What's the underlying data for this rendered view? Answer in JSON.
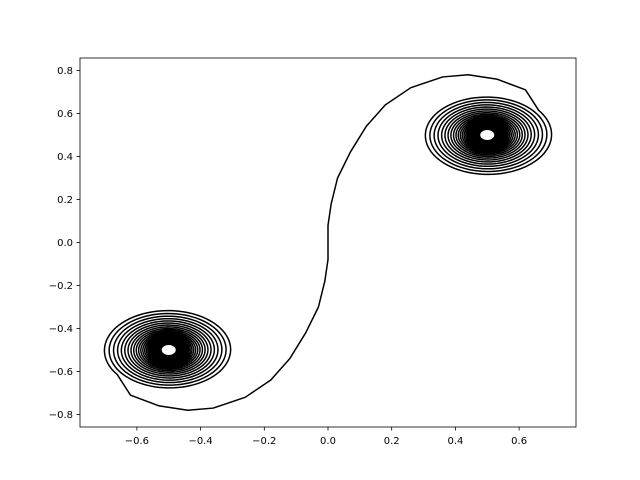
{
  "chart_data": {
    "type": "line",
    "title": "",
    "xlabel": "",
    "ylabel": "",
    "xlim": [
      -0.7786,
      0.7786
    ],
    "ylim": [
      -0.8581,
      0.8581
    ],
    "grid": false,
    "legend": "none",
    "line_color": "#000000",
    "x_ticks": [
      {
        "value": -0.6,
        "label": "−0.6"
      },
      {
        "value": -0.4,
        "label": "−0.4"
      },
      {
        "value": -0.2,
        "label": "−0.2"
      },
      {
        "value": 0.0,
        "label": "0.0"
      },
      {
        "value": 0.2,
        "label": "0.2"
      },
      {
        "value": 0.4,
        "label": "0.4"
      },
      {
        "value": 0.6,
        "label": "0.6"
      }
    ],
    "y_ticks": [
      {
        "value": -0.8,
        "label": "−0.8"
      },
      {
        "value": -0.6,
        "label": "−0.6"
      },
      {
        "value": -0.4,
        "label": "−0.4"
      },
      {
        "value": -0.2,
        "label": "−0.2"
      },
      {
        "value": 0.0,
        "label": "0.0"
      },
      {
        "value": 0.2,
        "label": "0.2"
      },
      {
        "value": 0.4,
        "label": "0.4"
      },
      {
        "value": 0.6,
        "label": "0.6"
      },
      {
        "value": 0.8,
        "label": "0.8"
      }
    ],
    "series": [
      {
        "curve": "double-spiral",
        "centers": [
          [
            -0.5,
            -0.5
          ],
          [
            0.5,
            0.5
          ]
        ],
        "x": [
          0.0,
          0.0,
          0.01,
          0.03,
          0.07,
          0.12,
          0.18,
          0.26,
          0.36,
          0.44,
          0.53,
          0.62,
          0.69,
          0.72,
          0.71,
          0.67,
          0.6,
          0.52,
          0.45,
          0.38,
          0.34,
          0.32,
          0.33,
          0.37,
          0.42,
          0.48,
          0.54,
          0.59,
          0.63,
          0.64,
          0.63,
          0.6,
          0.55,
          0.5,
          0.45,
          0.4,
          0.37,
          0.36,
          0.37,
          0.4,
          0.45,
          0.5,
          0.55,
          0.59,
          0.61,
          0.61,
          0.58,
          0.54,
          0.49,
          0.44,
          0.41,
          0.39,
          0.4,
          0.42,
          0.46,
          0.51,
          0.55,
          0.58,
          0.59,
          0.57,
          0.54,
          0.5,
          0.46,
          0.43,
          0.42,
          0.43,
          0.45,
          0.49,
          0.53,
          0.56,
          0.57,
          0.56,
          0.54,
          0.5,
          0.47,
          0.45,
          0.44,
          0.45,
          0.48,
          0.51,
          0.54,
          0.55,
          0.55,
          0.53,
          0.5,
          0.47,
          0.46,
          0.46,
          0.48,
          0.51,
          0.53,
          0.53,
          0.52,
          0.5,
          0.48,
          0.48,
          0.49,
          0.51,
          0.52,
          0.51,
          0.5
        ],
        "y": [
          0.0,
          0.08,
          0.18,
          0.3,
          0.42,
          0.54,
          0.64,
          0.72,
          0.77,
          0.78,
          0.76,
          0.71,
          0.63,
          0.54,
          0.44,
          0.37,
          0.33,
          0.32,
          0.34,
          0.38,
          0.44,
          0.5,
          0.56,
          0.61,
          0.64,
          0.65,
          0.63,
          0.59,
          0.54,
          0.49,
          0.44,
          0.4,
          0.37,
          0.36,
          0.37,
          0.4,
          0.44,
          0.49,
          0.54,
          0.58,
          0.61,
          0.62,
          0.61,
          0.58,
          0.54,
          0.49,
          0.45,
          0.41,
          0.39,
          0.39,
          0.41,
          0.44,
          0.48,
          0.53,
          0.57,
          0.59,
          0.59,
          0.57,
          0.54,
          0.5,
          0.46,
          0.43,
          0.42,
          0.42,
          0.44,
          0.47,
          0.51,
          0.55,
          0.57,
          0.57,
          0.55,
          0.52,
          0.48,
          0.45,
          0.44,
          0.44,
          0.46,
          0.49,
          0.52,
          0.55,
          0.55,
          0.54,
          0.51,
          0.48,
          0.46,
          0.46,
          0.47,
          0.49,
          0.52,
          0.53,
          0.53,
          0.51,
          0.49,
          0.48,
          0.48,
          0.49,
          0.51,
          0.52,
          0.51,
          0.5,
          0.5
        ]
      }
    ]
  }
}
